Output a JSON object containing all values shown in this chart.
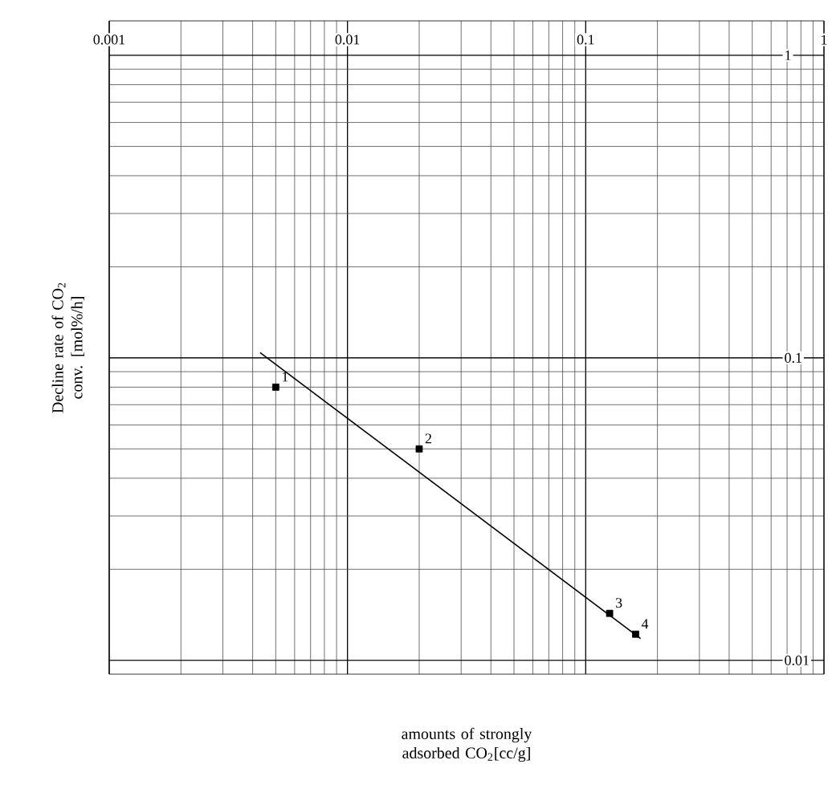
{
  "chart_data": {
    "type": "scatter",
    "log": "xy",
    "grid": true,
    "marker": "square",
    "xlabel": "amounts of strongly adsorbed CO$_{2}$[cc/g]",
    "ylabel": "Decline rate of CO$_{2}$ conv. [mol%/h]",
    "xlim": [
      0.001,
      1
    ],
    "xticks": [
      0.001,
      0.01,
      0.1,
      1
    ],
    "ylim": [
      0.009,
      1.3
    ],
    "yticks": [
      0.01,
      0.1,
      1
    ],
    "series": [
      {
        "color": "#000000",
        "x": [
          0.005,
          0.02,
          0.126,
          0.162
        ],
        "values": [
          0.08,
          0.05,
          0.0143,
          0.0122
        ]
      },
      {
        "type": "line",
        "color": "#000000",
        "marker": "none",
        "x": [
          0.0043,
          0.17
        ],
        "values": [
          0.104,
          0.0118
        ]
      }
    ],
    "annotations": [
      {
        "text": "1",
        "x": 0.005,
        "y": 0.08
      },
      {
        "text": "2",
        "x": 0.02,
        "y": 0.05
      },
      {
        "text": "3",
        "x": 0.126,
        "y": 0.0143
      },
      {
        "text": "4",
        "x": 0.162,
        "y": 0.0122
      }
    ]
  }
}
